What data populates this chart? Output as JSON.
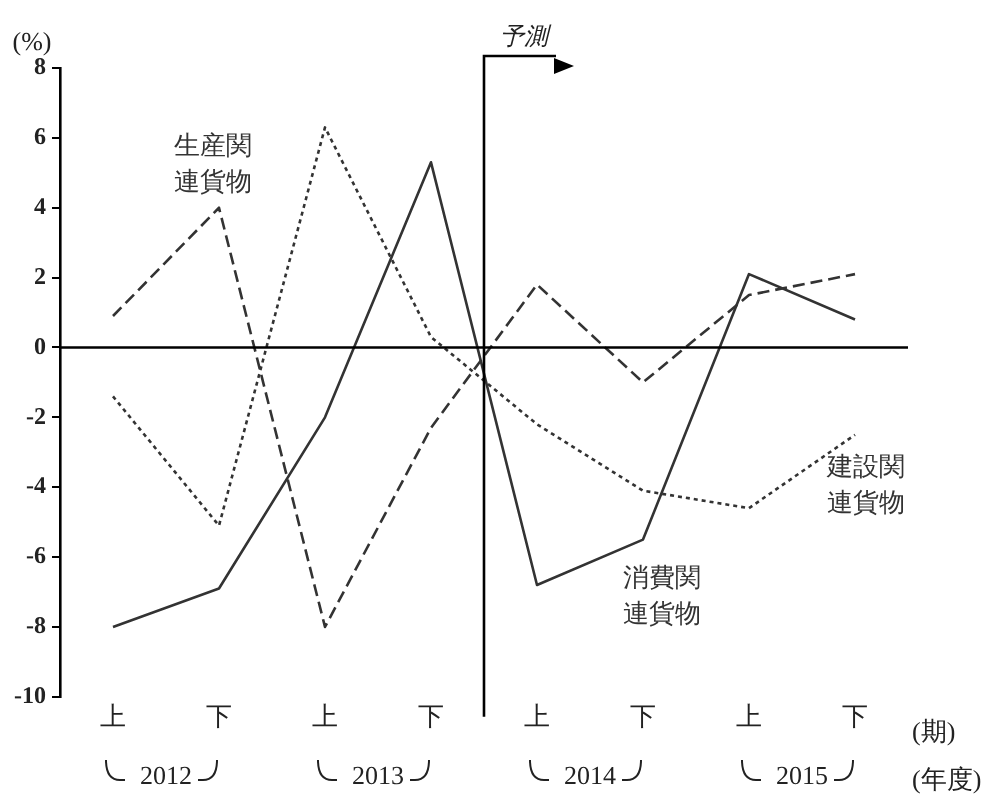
{
  "chart_data": {
    "type": "line",
    "ylabel": "(%)",
    "xlabel": "(期)",
    "categories": [
      "上",
      "下",
      "上",
      "下",
      "上",
      "下",
      "上",
      "下"
    ],
    "ylim": [
      -10,
      8
    ],
    "yticks": [
      -10,
      -8,
      -6,
      -4,
      -2,
      0,
      2,
      4,
      6,
      8
    ],
    "series": [
      {
        "name": "生産関連貨物",
        "color": "#333333",
        "line_style": "dashed",
        "values": [
          0.9,
          4.0,
          -8.0,
          -2.3,
          1.8,
          -1.0,
          1.5,
          2.1
        ]
      },
      {
        "name": "消費関連貨物",
        "color": "#333333",
        "line_style": "solid",
        "values": [
          -8.0,
          -6.9,
          -2.0,
          5.3,
          -6.8,
          -5.5,
          2.1,
          0.8
        ]
      },
      {
        "name": "建設関連貨物",
        "color": "#333333",
        "line_style": "dotted",
        "values": [
          -1.4,
          -5.1,
          6.3,
          0.3,
          -2.2,
          -4.1,
          -4.6,
          -2.5
        ]
      }
    ],
    "ref_lines": [
      {
        "axis": "y",
        "value": 0
      }
    ],
    "annotations": [
      "予測",
      "2012",
      "2013",
      "2014",
      "2015",
      "(年度)"
    ],
    "grid": false,
    "legend": false,
    "marker": "none"
  }
}
